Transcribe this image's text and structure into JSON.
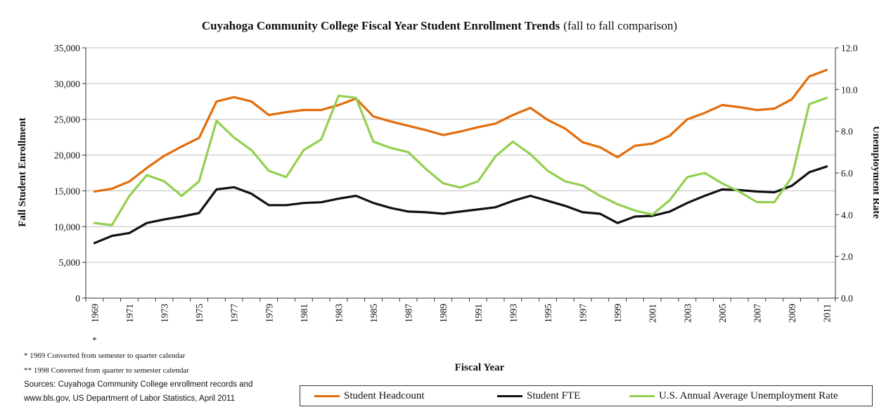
{
  "chart_data": {
    "type": "line",
    "title": "Cuyahoga Community College Fiscal Year Student Enrollment Trends (fall to fall comparison)",
    "title_main": "Cuyahoga Community College Fiscal Year Student Enrollment Trends",
    "title_suffix": "(fall to fall comparison)",
    "xlabel": "Fiscal Year",
    "ylabel": "Fall Student Enrollment",
    "y2label": "Unemployment Rate",
    "ylim": [
      0,
      35000
    ],
    "y2lim": [
      0,
      12
    ],
    "y_ticks": [
      "0",
      "5,000",
      "10,000",
      "15,000",
      "20,000",
      "25,000",
      "30,000",
      "35,000"
    ],
    "y2_ticks": [
      "0.0",
      "2.0",
      "4.0",
      "6.0",
      "8.0",
      "10.0",
      "12.0"
    ],
    "x": [
      1969,
      1970,
      1971,
      1972,
      1973,
      1974,
      1975,
      1976,
      1977,
      1978,
      1979,
      1980,
      1981,
      1982,
      1983,
      1984,
      1985,
      1986,
      1987,
      1988,
      1989,
      1990,
      1991,
      1992,
      1993,
      1994,
      1995,
      1996,
      1997,
      1998,
      1999,
      2000,
      2001,
      2002,
      2003,
      2004,
      2005,
      2006,
      2007,
      2008,
      2009,
      2010,
      2011
    ],
    "x_tick_labels": [
      "1969",
      "1971",
      "1973",
      "1975",
      "1977",
      "1979",
      "1981",
      "1983",
      "1985",
      "1987",
      "1989",
      "1991",
      "1993",
      "1995",
      "1997",
      "1999",
      "2001",
      "2003",
      "2005",
      "2007",
      "2009",
      "2011"
    ],
    "x_tick_marker": "*",
    "grid": true,
    "legend_position": "bottom",
    "series": [
      {
        "name": "Student Headcount",
        "axis": "left",
        "color": "#E36C0A",
        "values": [
          14900,
          15300,
          16300,
          18200,
          19900,
          21200,
          22400,
          27500,
          28100,
          27500,
          25600,
          26000,
          26300,
          26300,
          27000,
          27900,
          25400,
          24700,
          24100,
          23500,
          22800,
          23300,
          23900,
          24400,
          25600,
          26600,
          24900,
          23700,
          21800,
          21100,
          19700,
          21300,
          21600,
          22700,
          25000,
          25900,
          27000,
          26700,
          26300,
          26500,
          27800,
          31000,
          31900
        ]
      },
      {
        "name": "Student FTE",
        "axis": "left",
        "color": "#111111",
        "values": [
          7700,
          8700,
          9100,
          10500,
          11000,
          11400,
          11900,
          15200,
          15500,
          14600,
          13000,
          13000,
          13300,
          13400,
          13900,
          14300,
          13300,
          12600,
          12100,
          12000,
          11800,
          12100,
          12400,
          12700,
          13600,
          14300,
          13600,
          12900,
          12000,
          11800,
          10500,
          11400,
          11500,
          12100,
          13300,
          14300,
          15200,
          15100,
          14900,
          14800,
          15700,
          17600,
          18400
        ]
      },
      {
        "name": "U.S. Annual Average Unemployment Rate",
        "axis": "right",
        "color": "#92D050",
        "values": [
          3.6,
          3.5,
          4.9,
          5.9,
          5.6,
          4.9,
          5.6,
          8.5,
          7.7,
          7.1,
          6.1,
          5.8,
          7.1,
          7.6,
          9.7,
          9.6,
          7.5,
          7.2,
          7.0,
          6.2,
          5.5,
          5.3,
          5.6,
          6.8,
          7.5,
          6.9,
          6.1,
          5.6,
          5.4,
          4.9,
          4.5,
          4.2,
          4.0,
          4.7,
          5.8,
          6.0,
          5.5,
          5.1,
          4.6,
          4.6,
          5.8,
          9.3,
          9.6
        ]
      }
    ]
  },
  "notes": {
    "note1": "* 1969 Converted from semester to quarter calendar",
    "note2": "** 1998 Converted from quarter to semester calendar",
    "source1": "Sources: Cuyahoga Community College enrollment records and",
    "source2": "www.bls.gov, US Department of Labor Statistics, April 2011"
  }
}
